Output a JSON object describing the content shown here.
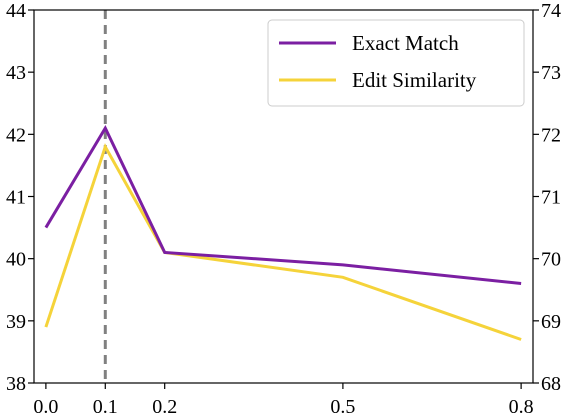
{
  "chart_data": {
    "type": "line",
    "x": [
      0.0,
      0.1,
      0.2,
      0.5,
      0.8
    ],
    "xticks": [
      "0.0",
      "0.1",
      "0.2",
      "0.5",
      "0.8"
    ],
    "xlim": [
      -0.02,
      0.82
    ],
    "left_axis": {
      "ylim": [
        38,
        44
      ],
      "ticks": [
        "38",
        "39",
        "40",
        "41",
        "42",
        "43",
        "44"
      ]
    },
    "right_axis": {
      "ylim": [
        68,
        74
      ],
      "ticks": [
        "68",
        "69",
        "70",
        "71",
        "72",
        "73",
        "74"
      ]
    },
    "series": [
      {
        "name": "Exact Match",
        "axis": "left",
        "color": "#7b1fa2",
        "values": [
          40.5,
          42.1,
          40.1,
          39.9,
          39.6
        ]
      },
      {
        "name": "Edit Similarity",
        "axis": "right",
        "color": "#f5d33a",
        "values": [
          68.9,
          71.8,
          70.1,
          69.7,
          68.7
        ]
      }
    ],
    "vline": {
      "x": 0.1,
      "style": "dashed",
      "color": "#808080"
    },
    "legend": "top-right",
    "grid": false
  }
}
